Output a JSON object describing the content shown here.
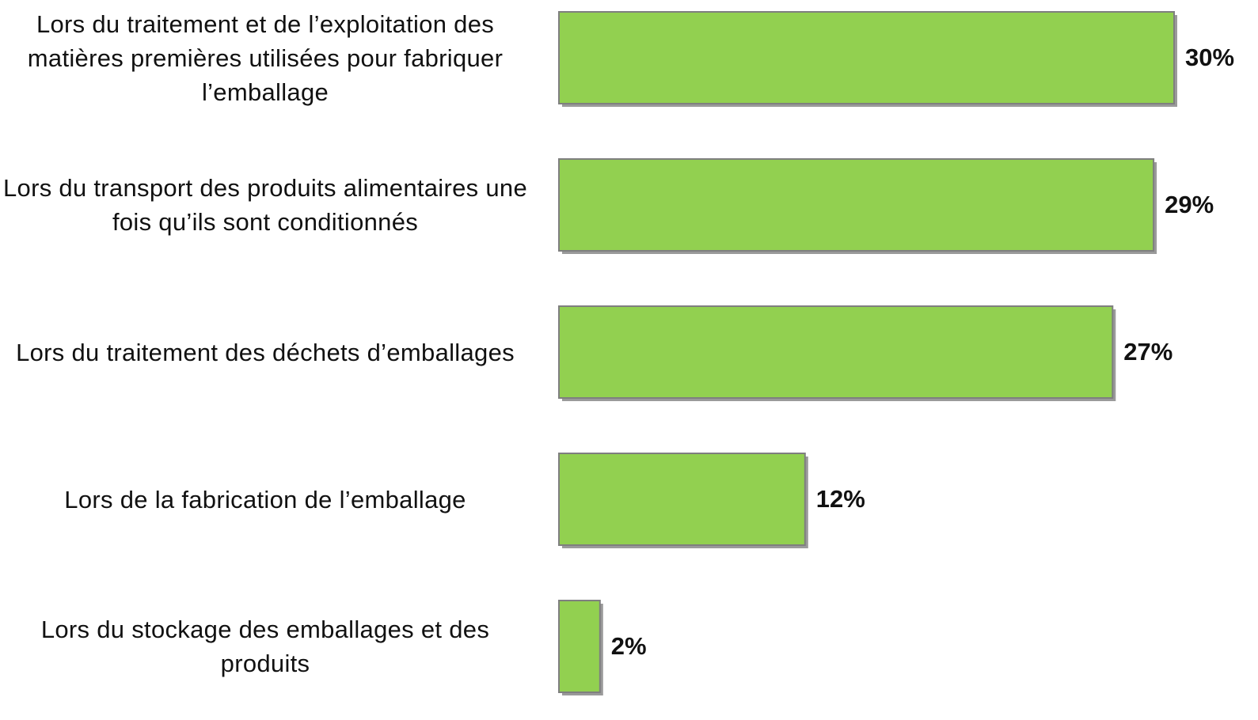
{
  "chart_data": {
    "type": "hbar",
    "categories": [
      "Lors du traitement et de l’exploitation des matières premières utilisées pour fabriquer l’emballage",
      "Lors du transport des produits alimentaires une fois qu’ils sont conditionnés",
      "Lors du traitement des déchets d’emballages",
      "Lors de la fabrication de l’emballage",
      "Lors du stockage des emballages et des produits"
    ],
    "values": [
      30,
      29,
      27,
      12,
      2
    ],
    "value_labels": [
      "30%",
      "29%",
      "27%",
      "12%",
      "2%"
    ],
    "color": "#92d050"
  }
}
